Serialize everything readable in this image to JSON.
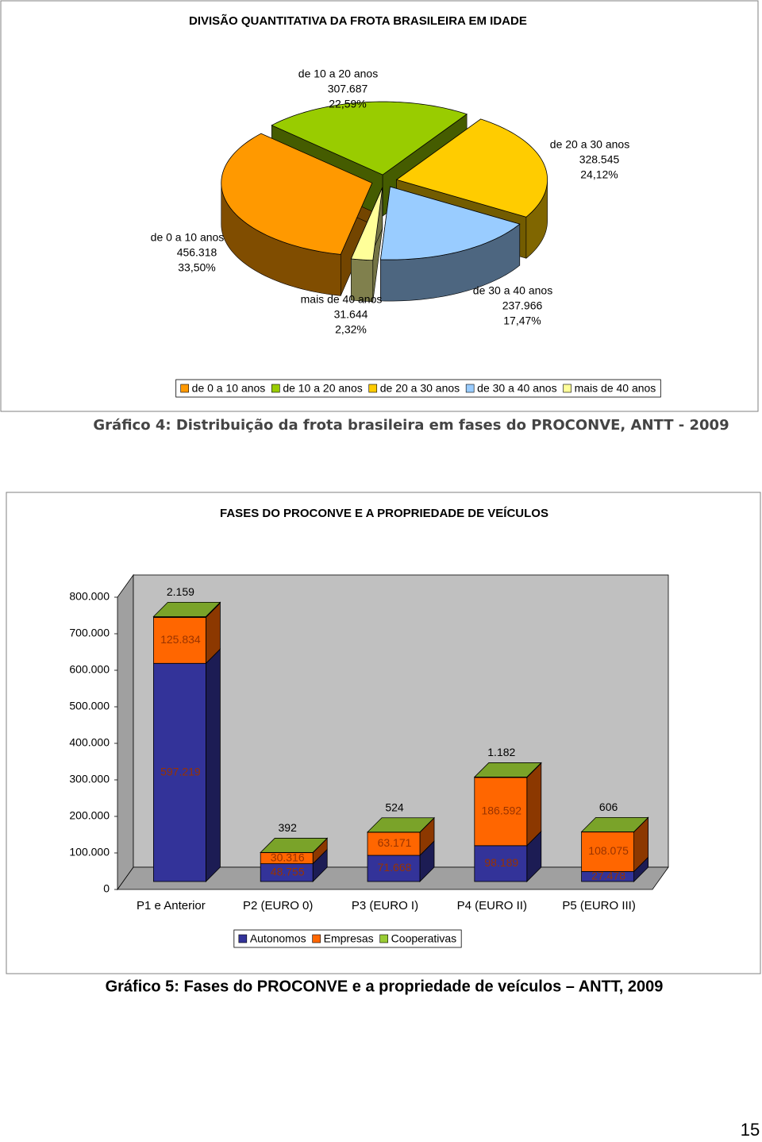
{
  "chart_data": [
    {
      "type": "pie",
      "title": "DIVISÃO QUANTITATIVA DA FROTA BRASILEIRA EM IDADE",
      "categories": [
        "de 0 a 10 anos",
        "de 10 a 20 anos",
        "de 20 a 30 anos",
        "de 30 a 40 anos",
        "mais de 40 anos"
      ],
      "values": [
        456318,
        307687,
        328545,
        237966,
        31644
      ],
      "value_labels": [
        "456.318",
        "307.687",
        "328.545",
        "237.966",
        "31.644"
      ],
      "percents": [
        33.5,
        22.59,
        24.12,
        17.47,
        2.32
      ],
      "percent_labels": [
        "33,50%",
        "22,59%",
        "24,12%",
        "17,47%",
        "2,32%"
      ],
      "colors": [
        "#ff9900",
        "#99cc00",
        "#ffcc00",
        "#99ccff",
        "#ffff99"
      ],
      "legend": "bottom"
    },
    {
      "type": "bar3d",
      "title": "FASES DO PROCONVE E A PROPRIEDADE DE VEÍCULOS",
      "categories": [
        "P1 e Anterior",
        "P2 (EURO 0)",
        "P3 (EURO I)",
        "P4 (EURO II)",
        "P5 (EURO III)"
      ],
      "series": [
        {
          "name": "Autonomos",
          "color": "#333399",
          "values": [
            597219,
            48755,
            71668,
            98189,
            27478
          ],
          "value_labels": [
            "597.219",
            "48.755",
            "71.668",
            "98.189",
            "27.478"
          ]
        },
        {
          "name": "Empresas",
          "color": "#ff6600",
          "values": [
            125834,
            30316,
            63171,
            186592,
            108075
          ],
          "value_labels": [
            "125.834",
            "30.316",
            "63.171",
            "186.592",
            "108.075"
          ]
        },
        {
          "name": "Cooperativas",
          "color": "#99cc33",
          "values": [
            2159,
            392,
            524,
            1182,
            606
          ],
          "value_labels": [
            "2.159",
            "392",
            "524",
            "1.182",
            "606"
          ]
        }
      ],
      "ylim": [
        0,
        800000
      ],
      "yticks": [
        0,
        {
          "value": 100000,
          "label": "100.000"
        },
        {
          "value": 200000,
          "label": "200.000"
        },
        {
          "value": 300000,
          "label": "300.000"
        },
        {
          "value": 400000,
          "label": "400.000"
        },
        {
          "value": 500000,
          "label": "500.000"
        },
        {
          "value": 600000,
          "label": "600.000"
        },
        {
          "value": 700000,
          "label": "700.000"
        },
        {
          "value": 800000,
          "label": "800.000"
        }
      ],
      "grid": false,
      "stacked": true,
      "legend": "bottom"
    }
  ],
  "captions": [
    "Gráfico 4: Distribuição da frota brasileira em fases do PROCONVE, ANTT - 2009",
    "Gráfico 5: Fases do PROCONVE e a propriedade de veículos – ANTT, 2009"
  ],
  "page_number": "15"
}
